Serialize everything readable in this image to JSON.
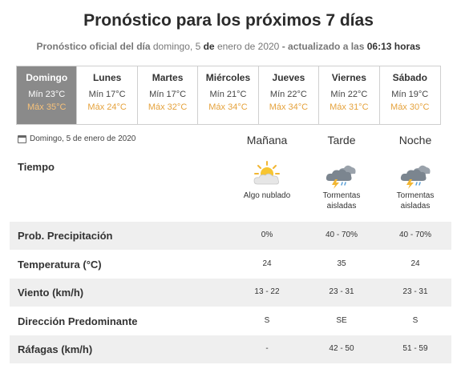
{
  "header": {
    "title": "Pronóstico para los próximos 7 días",
    "subtitle_part1": "Pronóstico oficial del día",
    "subtitle_day": "domingo, 5",
    "subtitle_de": "de",
    "subtitle_month_year": "enero de 2020",
    "subtitle_sep": "- actualizado a las",
    "subtitle_time": "06:13",
    "subtitle_end": "horas"
  },
  "days": [
    {
      "name": "Domingo",
      "min": "Mín 23°C",
      "max": "Máx 35°C",
      "active": true
    },
    {
      "name": "Lunes",
      "min": "Mín 17°C",
      "max": "Máx 24°C"
    },
    {
      "name": "Martes",
      "min": "Mín 17°C",
      "max": "Máx 32°C"
    },
    {
      "name": "Miércoles",
      "min": "Mín 21°C",
      "max": "Máx 34°C"
    },
    {
      "name": "Jueves",
      "min": "Mín 22°C",
      "max": "Máx 34°C"
    },
    {
      "name": "Viernes",
      "min": "Mín 22°C",
      "max": "Máx 31°C"
    },
    {
      "name": "Sábado",
      "min": "Mín 19°C",
      "max": "Máx 30°C"
    }
  ],
  "detail": {
    "date": "Domingo, 5 de enero de 2020",
    "columns": [
      "Mañana",
      "Tarde",
      "Noche"
    ],
    "tiempo_label": "Tiempo",
    "weather": [
      {
        "icon": "partly-cloudy-sun-icon",
        "desc_line1": "Algo nublado",
        "desc_line2": ""
      },
      {
        "icon": "thunderstorm-icon",
        "desc_line1": "Tormentas",
        "desc_line2": "aisladas"
      },
      {
        "icon": "thunderstorm-icon",
        "desc_line1": "Tormentas",
        "desc_line2": "aisladas"
      }
    ],
    "rows": [
      {
        "label": "Prob. Precipitación",
        "values": [
          "0%",
          "40 - 70%",
          "40 - 70%"
        ]
      },
      {
        "label": "Temperatura (°C)",
        "values": [
          "24",
          "35",
          "24"
        ]
      },
      {
        "label": "Viento (km/h)",
        "values": [
          "13 - 22",
          "23 - 31",
          "23 - 31"
        ]
      },
      {
        "label": "Dirección Predominante",
        "values": [
          "S",
          "SE",
          "S"
        ]
      },
      {
        "label": "Ráfagas (km/h)",
        "values": [
          "-",
          "42 - 50",
          "51 - 59"
        ]
      }
    ]
  },
  "colors": {
    "active_day_bg": "#8a8a8a",
    "max_temp": "#e5a23c",
    "row_shade": "#efefef"
  }
}
